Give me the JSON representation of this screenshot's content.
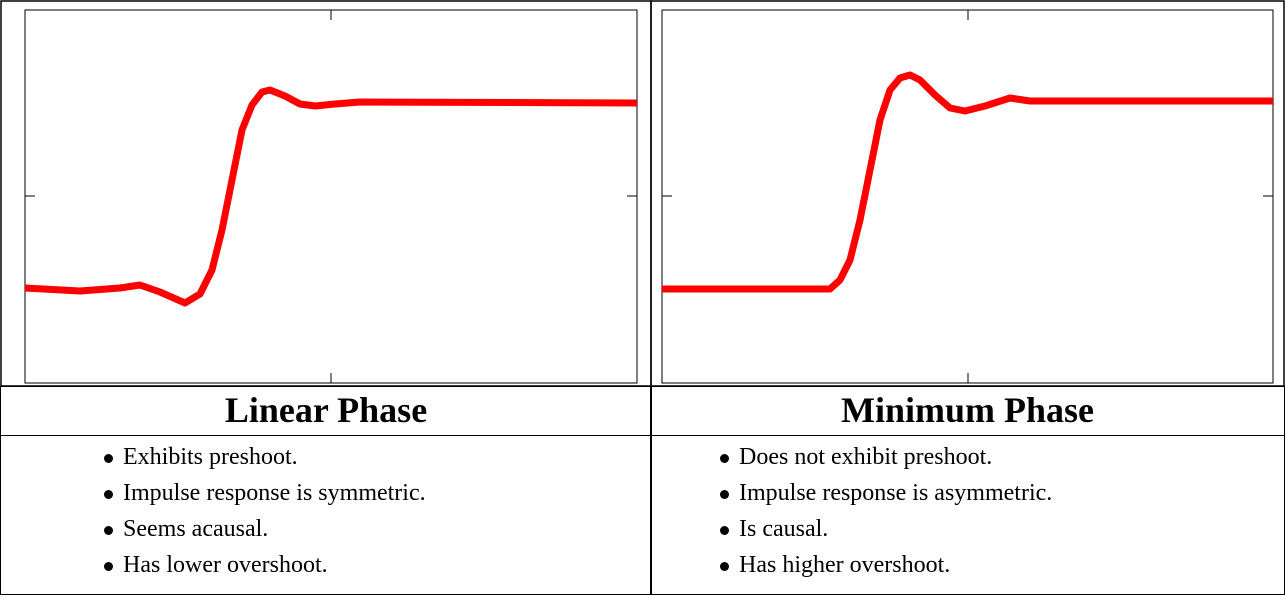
{
  "columns": [
    {
      "title": "Linear Phase",
      "bullets": [
        "Exhibits preshoot.",
        "Impulse response is symmetric.",
        "Seems acausal.",
        "Has lower overshoot."
      ]
    },
    {
      "title": "Minimum Phase",
      "bullets": [
        "Does not exhibit preshoot.",
        "Impulse response is asymmetric.",
        "Is causal.",
        "Has higher overshoot."
      ]
    }
  ]
}
